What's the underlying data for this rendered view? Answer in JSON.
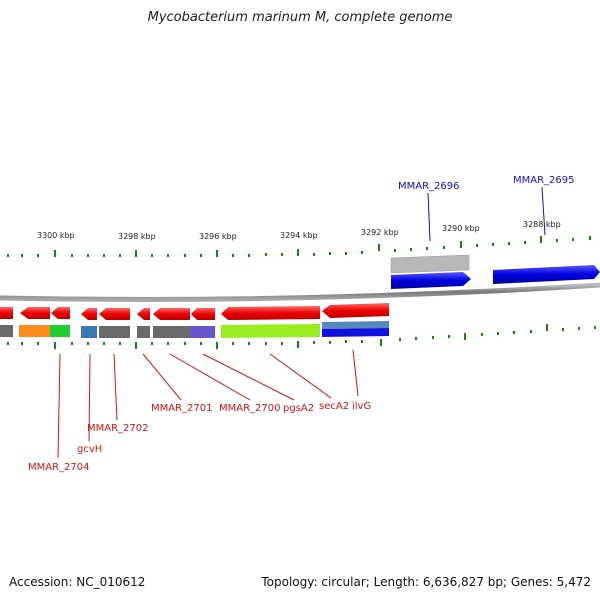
{
  "title": "Mycobacterium marinum M, complete genome",
  "footer": {
    "accession": "Accession: NC_010612",
    "info": "Topology: circular; Length: 6,636,827 bp; Genes: 5,472"
  },
  "colors": {
    "forward": "#1010e0",
    "reverse": "#ee1111",
    "tick": "#118811",
    "backbone": "#888888"
  },
  "ruler": {
    "ticks": [
      "3300 kbp",
      "3298 kbp",
      "3296 kbp",
      "3294 kbp",
      "3292 kbp",
      "3290 kbp",
      "3288 kbp"
    ]
  },
  "genes": {
    "forward_labels": [
      "MMAR_2696",
      "MMAR_2695"
    ],
    "reverse_labels": [
      "MMAR_2704",
      "gcvH",
      "MMAR_2702",
      "MMAR_2701",
      "MMAR_2700",
      "pgsA2",
      "secA2",
      "ilvG"
    ]
  }
}
